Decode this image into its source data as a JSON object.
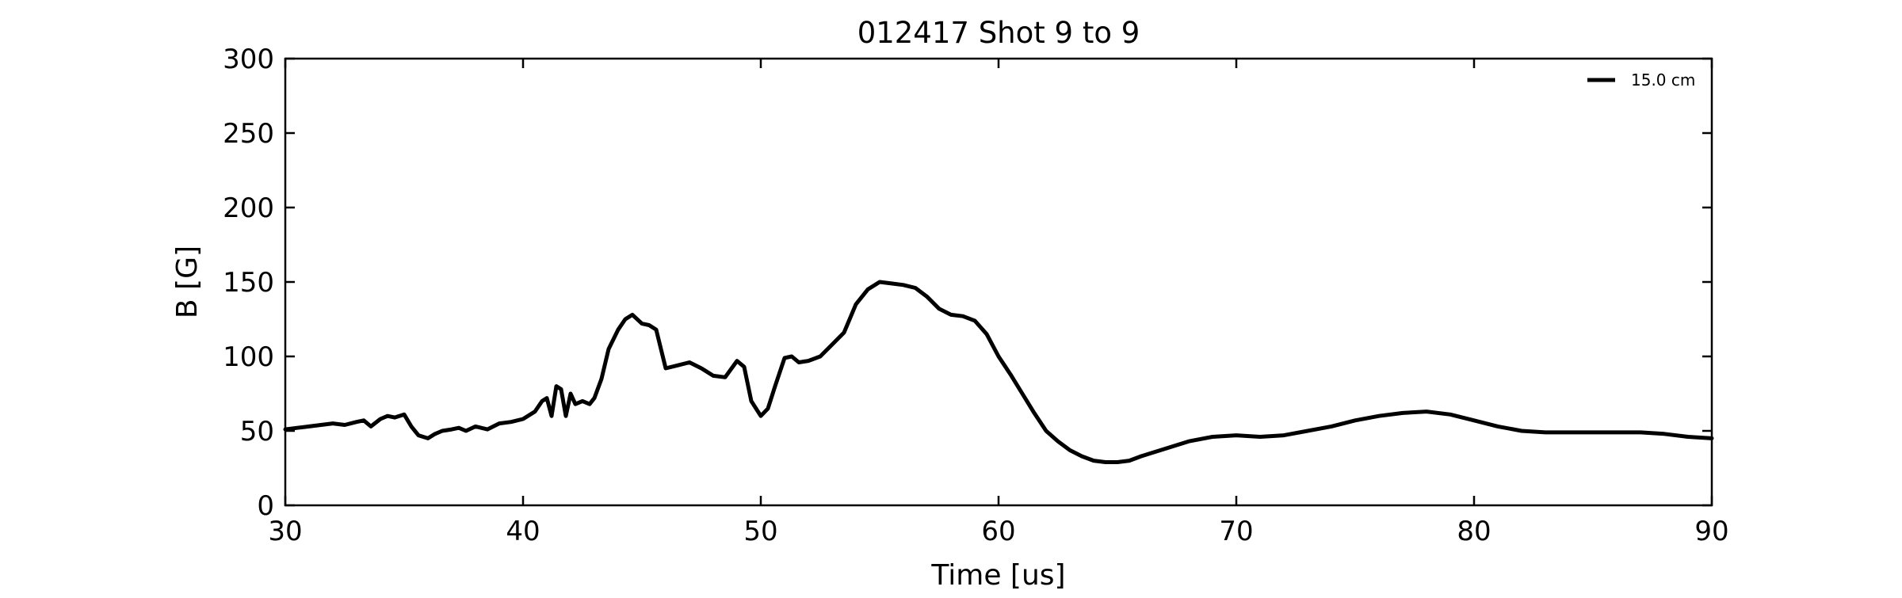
{
  "chart_data": {
    "type": "line",
    "title": "012417 Shot 9 to 9",
    "xlabel": "Time [us]",
    "ylabel": "B [G]",
    "xlim": [
      30,
      90
    ],
    "ylim": [
      0,
      300
    ],
    "xticks": [
      30,
      40,
      50,
      60,
      70,
      80,
      90
    ],
    "yticks": [
      0,
      50,
      100,
      150,
      200,
      250,
      300
    ],
    "grid": false,
    "legend_position": "top-right",
    "series": [
      {
        "name": "15.0 cm",
        "color": "#000000",
        "x": [
          30.0,
          30.5,
          31.0,
          31.5,
          32.0,
          32.5,
          33.0,
          33.3,
          33.6,
          34.0,
          34.3,
          34.6,
          35.0,
          35.3,
          35.6,
          36.0,
          36.3,
          36.6,
          37.0,
          37.3,
          37.6,
          38.0,
          38.5,
          39.0,
          39.5,
          40.0,
          40.5,
          40.8,
          41.0,
          41.2,
          41.4,
          41.6,
          41.8,
          42.0,
          42.2,
          42.5,
          42.8,
          43.0,
          43.3,
          43.6,
          44.0,
          44.3,
          44.6,
          45.0,
          45.3,
          45.6,
          46.0,
          46.5,
          47.0,
          47.5,
          48.0,
          48.5,
          49.0,
          49.3,
          49.6,
          50.0,
          50.3,
          50.6,
          51.0,
          51.3,
          51.6,
          52.0,
          52.5,
          53.0,
          53.5,
          54.0,
          54.5,
          55.0,
          55.5,
          56.0,
          56.5,
          57.0,
          57.5,
          58.0,
          58.5,
          59.0,
          59.5,
          60.0,
          60.5,
          61.0,
          61.5,
          62.0,
          62.5,
          63.0,
          63.5,
          64.0,
          64.5,
          65.0,
          65.5,
          66.0,
          67.0,
          68.0,
          69.0,
          70.0,
          71.0,
          72.0,
          73.0,
          74.0,
          75.0,
          76.0,
          77.0,
          78.0,
          79.0,
          80.0,
          81.0,
          82.0,
          83.0,
          84.0,
          85.0,
          86.0,
          87.0,
          88.0,
          89.0,
          90.0
        ],
        "y": [
          51,
          52,
          53,
          54,
          55,
          54,
          56,
          57,
          53,
          58,
          60,
          59,
          61,
          53,
          47,
          45,
          48,
          50,
          51,
          52,
          50,
          53,
          51,
          55,
          56,
          58,
          63,
          70,
          72,
          60,
          80,
          78,
          60,
          75,
          68,
          70,
          68,
          72,
          85,
          105,
          118,
          125,
          128,
          122,
          121,
          118,
          92,
          94,
          96,
          92,
          87,
          86,
          97,
          93,
          70,
          60,
          65,
          80,
          99,
          100,
          96,
          97,
          100,
          108,
          116,
          135,
          145,
          150,
          149,
          148,
          146,
          140,
          132,
          128,
          127,
          124,
          115,
          100,
          88,
          75,
          62,
          50,
          43,
          37,
          33,
          30,
          29,
          29,
          30,
          33,
          38,
          43,
          46,
          47,
          46,
          47,
          50,
          53,
          57,
          60,
          62,
          63,
          61,
          57,
          53,
          50,
          49,
          49,
          49,
          49,
          49,
          48,
          46,
          45
        ]
      }
    ]
  }
}
